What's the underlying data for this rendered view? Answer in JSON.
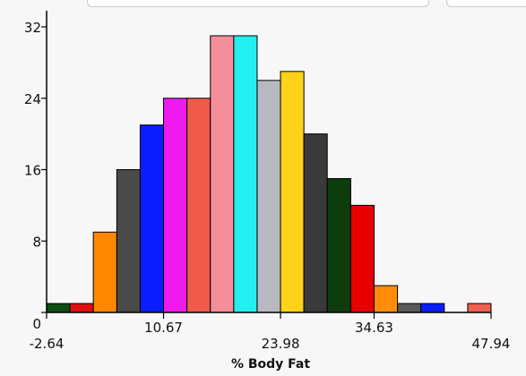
{
  "chart_data": {
    "type": "bar",
    "title": "",
    "xlabel": "% Body Fat",
    "ylabel": "",
    "grid": false,
    "xlim": [
      -2.64,
      47.94
    ],
    "ylim": [
      0,
      32
    ],
    "y_ticks": [
      0,
      8,
      16,
      24,
      32
    ],
    "x_ticks_lower": [
      "-2.64",
      "23.98",
      "47.94"
    ],
    "x_ticks_upper": [
      "10.67",
      "34.63"
    ],
    "bin_edges": [
      -2.64,
      0.02,
      2.68,
      5.35,
      8.01,
      10.67,
      13.33,
      16.0,
      18.66,
      21.32,
      23.98,
      26.64,
      29.3,
      31.97,
      34.63,
      37.29,
      39.95,
      42.62,
      45.28,
      47.94
    ],
    "values": [
      1,
      1,
      9,
      16,
      21,
      24,
      24,
      31,
      31,
      26,
      27,
      20,
      15,
      12,
      3,
      1,
      1,
      0,
      1
    ],
    "bar_colors": [
      "#0d4d12",
      "#e01010",
      "#ff8800",
      "#4a4a4a",
      "#0a1fff",
      "#ee1aee",
      "#f05a4a",
      "#f58e9a",
      "#22f0f0",
      "#b8b8c0",
      "#ffd21a",
      "#3a3a3a",
      "#0d3d0d",
      "#e80000",
      "#ff8c0a",
      "#5a5a5a",
      "#0a20ff",
      "#ffffff",
      "#f06050"
    ]
  }
}
